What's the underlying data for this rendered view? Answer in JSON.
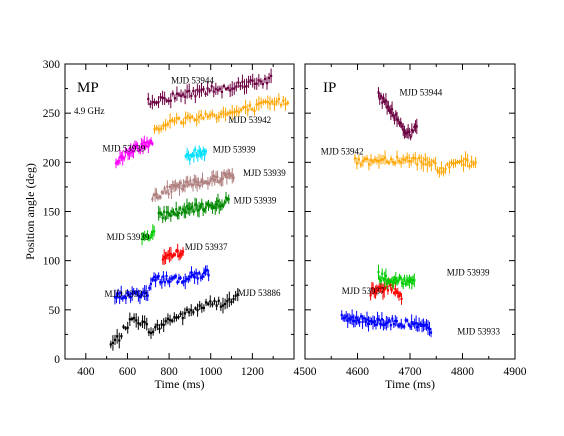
{
  "chart_data": [
    {
      "type": "scatter",
      "panel_label": "MP",
      "annotation": "4.9 GHz",
      "xlabel": "Time (ms)",
      "ylabel": "Position angle (deg)",
      "xlim": [
        300,
        1400
      ],
      "ylim": [
        0,
        300
      ],
      "xticks": [
        400,
        600,
        800,
        1000,
        1200,
        1400
      ],
      "yticks": [
        0,
        50,
        100,
        150,
        200,
        250,
        300
      ],
      "tick_labels_x": [
        "400",
        "600",
        "800",
        "1000",
        "1200"
      ],
      "tick_labels_y": [
        "0",
        "50",
        "100",
        "150",
        "200",
        "250",
        "300"
      ],
      "series": [
        {
          "name": "MJD 53886",
          "color": "#000000",
          "label_at": [
            1130,
            64
          ],
          "x_range": [
            520,
            1130
          ],
          "trend": [
            [
              520,
              14
            ],
            [
              560,
              22
            ],
            [
              600,
              35
            ],
            [
              640,
              42
            ],
            [
              680,
              35
            ],
            [
              720,
              28
            ],
            [
              760,
              34
            ],
            [
              800,
              40
            ],
            [
              860,
              44
            ],
            [
              920,
              50
            ],
            [
              980,
              55
            ],
            [
              1040,
              57
            ],
            [
              1080,
              58
            ],
            [
              1120,
              62
            ]
          ]
        },
        {
          "name": "MJD 53933",
          "color": "#0000ff",
          "label_at": [
            490,
            63
          ],
          "x_range": [
            540,
            990
          ],
          "trend": [
            [
              540,
              63
            ],
            [
              600,
              65
            ],
            [
              660,
              66
            ],
            [
              700,
              68
            ],
            [
              720,
              80
            ],
            [
              780,
              82
            ],
            [
              840,
              80
            ],
            [
              900,
              84
            ],
            [
              960,
              86
            ],
            [
              990,
              88
            ]
          ]
        },
        {
          "name": "MJD 53937",
          "color": "#ff0000",
          "label_at": [
            875,
            111
          ],
          "x_range": [
            770,
            870
          ],
          "trend": [
            [
              770,
              101
            ],
            [
              820,
              104
            ],
            [
              870,
              112
            ]
          ]
        },
        {
          "name": "MJD 53939",
          "color": "#00cc00",
          "label_at": [
            500,
            121
          ],
          "x_range": [
            670,
            730
          ],
          "trend": [
            [
              670,
              120
            ],
            [
              700,
              126
            ],
            [
              730,
              130
            ]
          ]
        },
        {
          "name": "MJD 53939",
          "color": "#008800",
          "label_at": [
            1110,
            158
          ],
          "x_range": [
            750,
            1090
          ],
          "trend": [
            [
              750,
              145
            ],
            [
              850,
              150
            ],
            [
              950,
              154
            ],
            [
              1050,
              158
            ],
            [
              1090,
              162
            ]
          ]
        },
        {
          "name": "MJD 53939",
          "color": "#b08080",
          "label_at": [
            1155,
            186
          ],
          "x_range": [
            720,
            1110
          ],
          "trend": [
            [
              720,
              165
            ],
            [
              800,
              172
            ],
            [
              900,
              178
            ],
            [
              1000,
              182
            ],
            [
              1110,
              188
            ]
          ]
        },
        {
          "name": "MJD 53939",
          "color": "#00e0ff",
          "label_at": [
            1010,
            210
          ],
          "x_range": [
            880,
            980
          ],
          "trend": [
            [
              880,
              204
            ],
            [
              930,
              210
            ],
            [
              980,
              212
            ]
          ]
        },
        {
          "name": "MJD 53939",
          "color": "#ff00ff",
          "label_at": [
            480,
            211
          ],
          "x_range": [
            545,
            720
          ],
          "trend": [
            [
              545,
              200
            ],
            [
              600,
              210
            ],
            [
              660,
              216
            ],
            [
              720,
              222
            ]
          ]
        },
        {
          "name": "MJD 53942",
          "color": "#ffa500",
          "label_at": [
            1290,
            240
          ],
          "x_range": [
            730,
            1370
          ],
          "trend": [
            [
              730,
              235
            ],
            [
              800,
              240
            ],
            [
              900,
              245
            ],
            [
              1000,
              248
            ],
            [
              1100,
              250
            ],
            [
              1200,
              255
            ],
            [
              1300,
              260
            ],
            [
              1370,
              262
            ]
          ]
        },
        {
          "name": "MJD 53944",
          "color": "#6b0040",
          "label_at": [
            810,
            280
          ],
          "x_range": [
            700,
            1290
          ],
          "trend": [
            [
              700,
              262
            ],
            [
              800,
              266
            ],
            [
              900,
              270
            ],
            [
              1000,
              274
            ],
            [
              1100,
              277
            ],
            [
              1200,
              282
            ],
            [
              1290,
              284
            ]
          ]
        }
      ]
    },
    {
      "type": "scatter",
      "panel_label": "IP",
      "xlabel": "Time (ms)",
      "ylabel": "",
      "xlim": [
        4500,
        4900
      ],
      "ylim": [
        0,
        300
      ],
      "xticks": [
        4500,
        4600,
        4700,
        4800,
        4900
      ],
      "yticks": [
        0,
        50,
        100,
        150,
        200,
        250,
        300
      ],
      "tick_labels_x": [
        "4500",
        "4600",
        "4700",
        "4800",
        "4900"
      ],
      "tick_labels_y": [],
      "series": [
        {
          "name": "MJD 53933",
          "color": "#0000ff",
          "label_at": [
            4790,
            25
          ],
          "x_range": [
            4570,
            4740
          ],
          "trend": [
            [
              4570,
              42
            ],
            [
              4600,
              40
            ],
            [
              4650,
              38
            ],
            [
              4700,
              36
            ],
            [
              4740,
              30
            ]
          ]
        },
        {
          "name": "MJD 53937",
          "color": "#ff0000",
          "label_at": [
            4570,
            66
          ],
          "x_range": [
            4625,
            4685
          ],
          "trend": [
            [
              4625,
              68
            ],
            [
              4640,
              70
            ],
            [
              4660,
              74
            ],
            [
              4685,
              64
            ]
          ]
        },
        {
          "name": "MJD 53939",
          "color": "#00cc00",
          "label_at": [
            4770,
            85
          ],
          "x_range": [
            4640,
            4710
          ],
          "trend": [
            [
              4640,
              85
            ],
            [
              4665,
              78
            ],
            [
              4690,
              80
            ],
            [
              4710,
              82
            ]
          ]
        },
        {
          "name": "MJD 53942",
          "color": "#ffa500",
          "label_at": [
            4530,
            208
          ],
          "x_range": [
            4595,
            4825
          ],
          "trend": [
            [
              4595,
              200
            ],
            [
              4650,
              203
            ],
            [
              4700,
              203
            ],
            [
              4740,
              200
            ],
            [
              4760,
              192
            ],
            [
              4800,
              200
            ],
            [
              4825,
              198
            ]
          ]
        },
        {
          "name": "MJD 53944",
          "color": "#6b0040",
          "label_at": [
            4680,
            268
          ],
          "x_range": [
            4640,
            4715
          ],
          "trend": [
            [
              4640,
              270
            ],
            [
              4660,
              255
            ],
            [
              4680,
              240
            ],
            [
              4700,
              228
            ],
            [
              4715,
              236
            ]
          ]
        }
      ]
    }
  ]
}
